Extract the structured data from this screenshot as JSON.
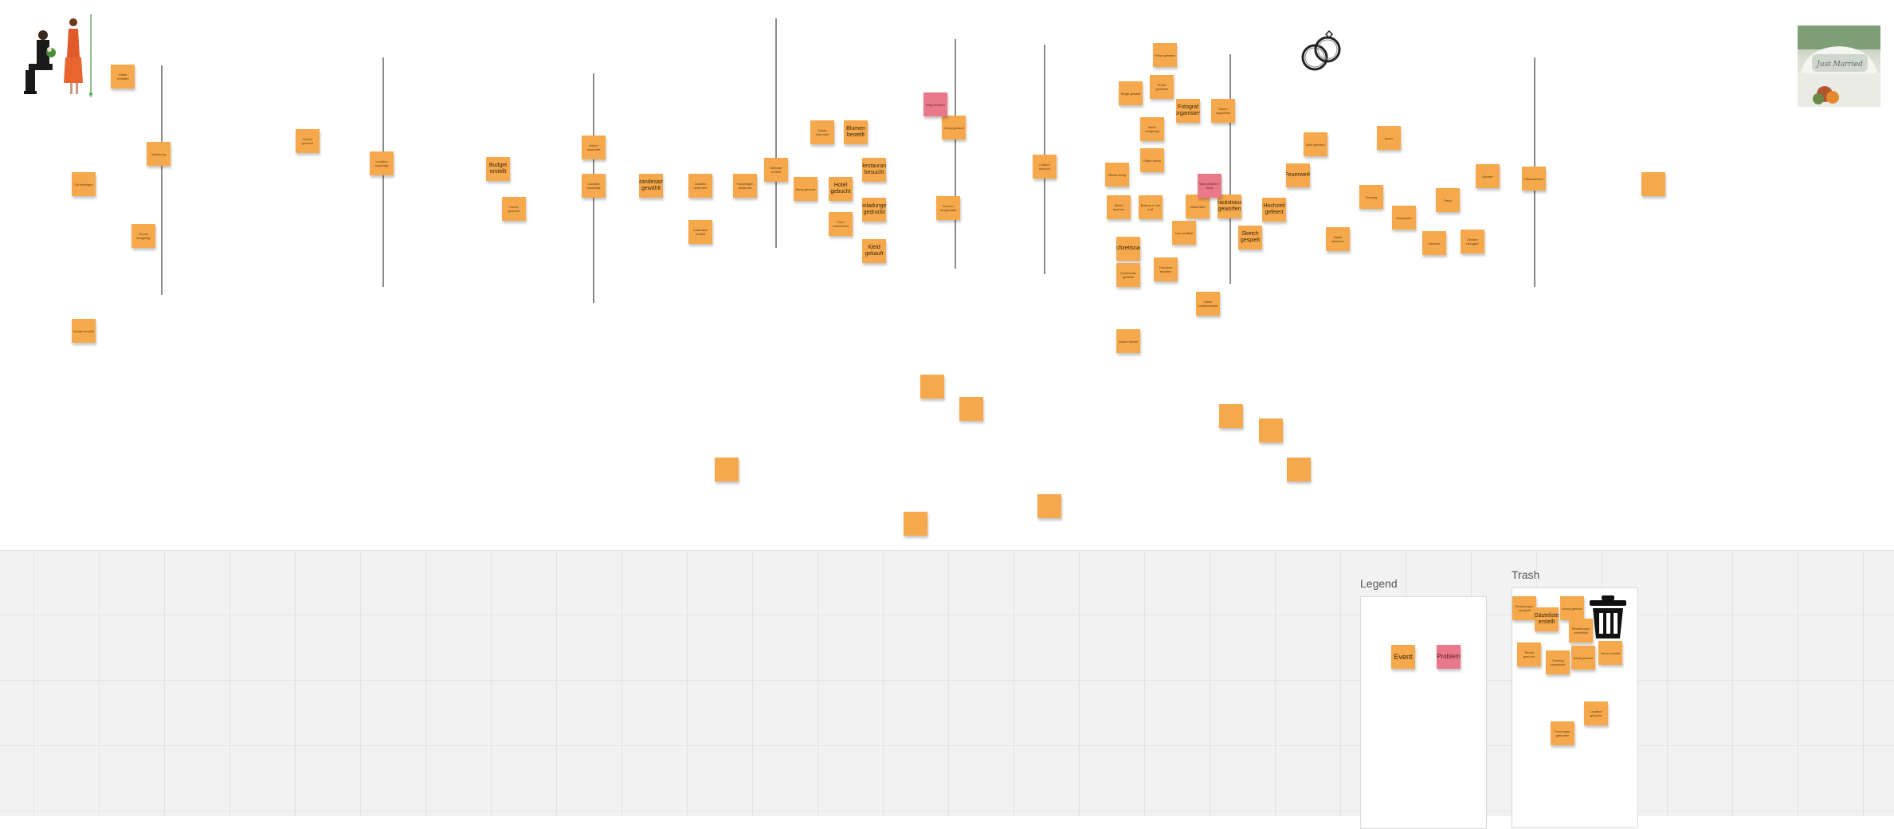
{
  "legend": {
    "title": "Legend",
    "event_label": "Event",
    "problem_label": "Problem"
  },
  "trash": {
    "title": "Trash"
  },
  "images": {
    "couple": "proposal-photo",
    "car": "wedding-car-photo",
    "rings": "wedding-rings-icon",
    "trash": "trash-can-icon"
  },
  "colors": {
    "event": "#f5a94c",
    "problem": "#e8788a"
  },
  "stickies_top": [
    "Gäste einladen",
    "Ort festlegen",
    "Verlobung",
    "Termin festgelegt",
    "Budget erstellt",
    "Kirche gesucht",
    "Location besichtigt",
    "Budget erstellt",
    "Kirche gesucht",
    "Kirche reserviert",
    "Location besichtigt",
    "Standesamt gewählt",
    "Location reserviert",
    "Gästeliste erstellt",
    "Trauzeugen bestimmt",
    "Website erstellt",
    "Band gebucht",
    "Gäste informiert",
    "Blumen bestellt",
    "Hotel gebucht",
    "Restaurant besucht",
    "Einladungen gedruckt",
    "Tisch reservieren",
    "Kleid gekauft",
    "Anzug gekauft",
    "Kuchen ausgewählt",
    "Coiffure besucht",
    "Ringe gekauft",
    "Frisur getestet",
    "Probe gemacht",
    "Fotograf organisiert",
    "Essen organisiert",
    "Menü festgelegt",
    "Gäste sitzen",
    "Messe fertig",
    "Spiele machen",
    "Ballone in der Luft",
    "Musik läuft",
    "Brautstrauss geworfen",
    "Tanz eröffnet",
    "Hochzeitsnacht",
    "Geschenke geöffnet",
    "Fotobuch erhalten",
    "Gäste verabschiedet",
    "Danke Karten",
    "Sketch gespielt",
    "Hochzeit gefeiert",
    "Feuerwerk",
    "Brief gelesen",
    "Gäste abreisen",
    "Trauung",
    "Apero",
    "Ansprache",
    "Dessert",
    "Party",
    "Zimmer bezogen",
    "Abreise",
    "Flitterwochen"
  ],
  "problem_stickies": [
    "Ring verloren",
    "Was verloren? Torte!"
  ],
  "stickies_trash": [
    "Einladungen versandt",
    "Gästeliste erstellt",
    "Anzug gekauft",
    "Einladungen verschickt",
    "Termin gesucht",
    "Catering organisiert",
    "Band gesucht",
    "Menü bestellt",
    "Location gesucht",
    "Trauzeugen gefunden"
  ]
}
